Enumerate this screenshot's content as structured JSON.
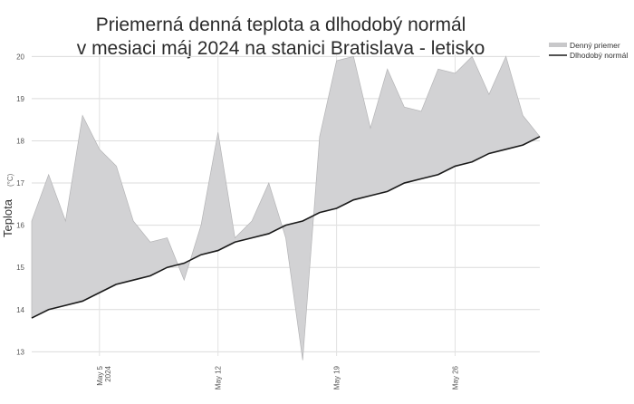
{
  "chart_data": {
    "type": "area",
    "title": "Priemerná denná teplota a dlhodobý normál v mesiaci máj 2024 na stanici Bratislava - letisko",
    "title_lines": [
      "Priemerná denná teplota a dlhodobý normál",
      "v mesiaci máj 2024 na stanici Bratislava - letisko"
    ],
    "ylabel": "Teplota",
    "yunit": "(°C)",
    "xlabel": "",
    "ylim": [
      12.9,
      20.05
    ],
    "yticks": [
      13,
      14,
      15,
      16,
      17,
      18,
      19,
      20
    ],
    "grid": true,
    "legend_position": "top-right",
    "x": [
      1,
      2,
      3,
      4,
      5,
      6,
      7,
      8,
      9,
      10,
      11,
      12,
      13,
      14,
      15,
      16,
      17,
      18,
      19,
      20,
      21,
      22,
      23,
      24,
      25,
      26,
      27,
      28,
      29,
      30,
      31
    ],
    "xticks": [
      {
        "day": 5,
        "lines": [
          "May 5",
          "2024"
        ]
      },
      {
        "day": 12,
        "lines": [
          "May 12"
        ]
      },
      {
        "day": 19,
        "lines": [
          "May 19"
        ]
      },
      {
        "day": 26,
        "lines": [
          "May 26"
        ]
      }
    ],
    "series": [
      {
        "name": "Denný priemer",
        "color": "#d2d2d4",
        "values": [
          16.1,
          17.2,
          16.1,
          18.6,
          17.8,
          17.4,
          16.1,
          15.6,
          15.7,
          14.7,
          16.0,
          18.2,
          15.7,
          16.1,
          17.0,
          15.7,
          12.8,
          18.1,
          19.9,
          20.0,
          18.3,
          19.7,
          18.8,
          18.7,
          19.7,
          19.6,
          20.0,
          19.1,
          20.0,
          18.6,
          18.1
        ]
      },
      {
        "name": "Dlhodobý normál",
        "color": "#1a1a1a",
        "values": [
          13.8,
          14.0,
          14.1,
          14.2,
          14.4,
          14.6,
          14.7,
          14.8,
          15.0,
          15.1,
          15.3,
          15.4,
          15.6,
          15.7,
          15.8,
          16.0,
          16.1,
          16.3,
          16.4,
          16.6,
          16.7,
          16.8,
          17.0,
          17.1,
          17.2,
          17.4,
          17.5,
          17.7,
          17.8,
          17.9,
          18.1
        ]
      }
    ]
  }
}
